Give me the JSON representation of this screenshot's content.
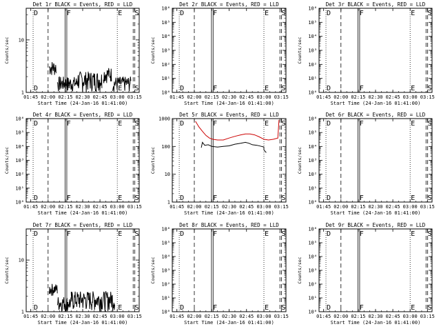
{
  "x_tick_labels": [
    "01:45",
    "02:00",
    "02:15",
    "02:30",
    "02:45",
    "03:00",
    "03:15"
  ],
  "x_title": "Start Time (24-Jan-16 01:41:00)",
  "y_title": "Counts/sec",
  "event_markers": [
    {
      "label": "D",
      "time": "01:47:00",
      "style": "dotted",
      "text_above": false
    },
    {
      "label": "",
      "time": "02:00:00",
      "style": "dashed"
    },
    {
      "label": "F",
      "time": "02:15:30",
      "style": "double-solid"
    },
    {
      "label": "E",
      "time": "03:00:00",
      "style": "dotted"
    },
    {
      "label": "S",
      "time": "03:14:30",
      "style": "double-dashed"
    }
  ],
  "colors": {
    "events": "#000000",
    "lld": "#cc0000"
  },
  "chart_data": [
    {
      "type": "line",
      "title": "Det 1r BLACK = Events, RED = LLD",
      "yscale": "log",
      "ylim": [
        1,
        40
      ],
      "y_tick_labels": [
        "1",
        "10"
      ],
      "y_ticks": [
        1,
        10
      ],
      "series": [
        {
          "color": "#000000",
          "kind": "noisy",
          "segments": [
            {
              "x": [
                "02:01",
                "02:07"
              ],
              "y": [
                3.0,
                2.5
              ],
              "band": [
                2,
                4
              ]
            },
            {
              "x": [
                "02:08",
                "02:25"
              ],
              "y": [
                2.0,
                2.0
              ],
              "band": [
                1,
                2
              ]
            },
            {
              "x": [
                "02:25",
                "02:47"
              ],
              "y": [
                2.0,
                2.0
              ],
              "band": [
                1,
                2.5
              ]
            },
            {
              "x": [
                "02:48",
                "02:55"
              ],
              "y": [
                2.5,
                2.5
              ],
              "band": [
                1.5,
                3
              ]
            },
            {
              "x": [
                "02:56",
                "03:12"
              ],
              "y": [
                2.0,
                2.0
              ],
              "band": [
                1,
                2
              ]
            }
          ]
        }
      ]
    },
    {
      "type": "line",
      "title": "Det 2r BLACK = Events, RED = LLD",
      "yscale": "log",
      "ylim": [
        1,
        1000000
      ],
      "y_tick_labels": [
        "10⁰",
        "10¹",
        "10²",
        "10³",
        "10⁴",
        "10⁵",
        "10⁶"
      ],
      "y_ticks": [
        1,
        10,
        100,
        1000,
        10000,
        100000,
        1000000
      ],
      "series": []
    },
    {
      "type": "line",
      "title": "Det 3r BLACK = Events, RED = LLD",
      "yscale": "log",
      "ylim": [
        1,
        1000000
      ],
      "y_tick_labels": [
        "10⁰",
        "10¹",
        "10²",
        "10³",
        "10⁴",
        "10⁵",
        "10⁶"
      ],
      "y_ticks": [
        1,
        10,
        100,
        1000,
        10000,
        100000,
        1000000
      ],
      "series": []
    },
    {
      "type": "line",
      "title": "Det 4r BLACK = Events, RED = LLD",
      "yscale": "log",
      "ylim": [
        1,
        1000000
      ],
      "y_tick_labels": [
        "10⁰",
        "10¹",
        "10²",
        "10³",
        "10⁴",
        "10⁵",
        "10⁶"
      ],
      "y_ticks": [
        1,
        10,
        100,
        1000,
        10000,
        100000,
        1000000
      ],
      "series": []
    },
    {
      "type": "line",
      "title": "Det 5r BLACK = Events, RED = LLD",
      "yscale": "log",
      "ylim": [
        1,
        1000
      ],
      "y_tick_labels": [
        "1",
        "10",
        "100",
        "1000"
      ],
      "y_ticks": [
        1,
        10,
        100,
        1000
      ],
      "series": [
        {
          "color": "#cc0000",
          "kind": "smooth",
          "x": [
            "02:01",
            "02:04",
            "02:07",
            "02:10",
            "02:13",
            "02:16",
            "02:20",
            "02:25",
            "02:30",
            "02:35",
            "02:40",
            "02:44",
            "02:48",
            "02:52",
            "02:56",
            "03:00",
            "03:04",
            "03:08",
            "03:12",
            "03:13"
          ],
          "y": [
            800,
            500,
            350,
            250,
            200,
            180,
            170,
            170,
            200,
            230,
            260,
            280,
            280,
            260,
            220,
            180,
            170,
            180,
            200,
            900
          ]
        },
        {
          "color": "#000000",
          "kind": "smooth",
          "x": [
            "02:06",
            "02:07",
            "02:09",
            "02:12",
            "02:15",
            "02:20",
            "02:25",
            "02:30",
            "02:35",
            "02:40",
            "02:44",
            "02:47",
            "02:50",
            "02:54",
            "02:58",
            "03:00",
            "03:00",
            "03:02"
          ],
          "y": [
            90,
            140,
            110,
            115,
            100,
            95,
            100,
            105,
            120,
            130,
            140,
            130,
            115,
            110,
            100,
            95,
            75,
            60
          ]
        }
      ]
    },
    {
      "type": "line",
      "title": "Det 6r BLACK = Events, RED = LLD",
      "yscale": "log",
      "ylim": [
        1,
        1000000
      ],
      "y_tick_labels": [
        "10⁰",
        "10¹",
        "10²",
        "10³",
        "10⁴",
        "10⁵",
        "10⁶"
      ],
      "y_ticks": [
        1,
        10,
        100,
        1000,
        10000,
        100000,
        1000000
      ],
      "series": []
    },
    {
      "type": "line",
      "title": "Det 7r BLACK = Events, RED = LLD",
      "yscale": "log",
      "ylim": [
        1,
        40
      ],
      "y_tick_labels": [
        "1",
        "10"
      ],
      "y_ticks": [
        1,
        10
      ],
      "series": [
        {
          "color": "#000000",
          "kind": "noisy",
          "segments": [
            {
              "x": [
                "02:01",
                "02:08"
              ],
              "y": [
                3.0,
                2.5
              ],
              "band": [
                2,
                3.5
              ]
            },
            {
              "x": [
                "02:08",
                "02:20"
              ],
              "y": [
                2.0,
                2.0
              ],
              "band": [
                1,
                2
              ]
            },
            {
              "x": [
                "02:20",
                "02:58"
              ],
              "y": [
                2.0,
                2.0
              ],
              "band": [
                1,
                2.5
              ]
            }
          ]
        }
      ]
    },
    {
      "type": "line",
      "title": "Det 8r BLACK = Events, RED = LLD",
      "yscale": "log",
      "ylim": [
        1,
        1000000
      ],
      "y_tick_labels": [
        "10⁰",
        "10¹",
        "10²",
        "10³",
        "10⁴",
        "10⁵",
        "10⁶"
      ],
      "y_ticks": [
        1,
        10,
        100,
        1000,
        10000,
        100000,
        1000000
      ],
      "series": []
    },
    {
      "type": "line",
      "title": "Det 9r BLACK = Events, RED = LLD",
      "yscale": "log",
      "ylim": [
        1,
        1000000
      ],
      "y_tick_labels": [
        "10⁰",
        "10¹",
        "10²",
        "10³",
        "10⁴",
        "10⁵",
        "10⁶"
      ],
      "y_ticks": [
        1,
        10,
        100,
        1000,
        10000,
        100000,
        1000000
      ],
      "series": []
    }
  ]
}
